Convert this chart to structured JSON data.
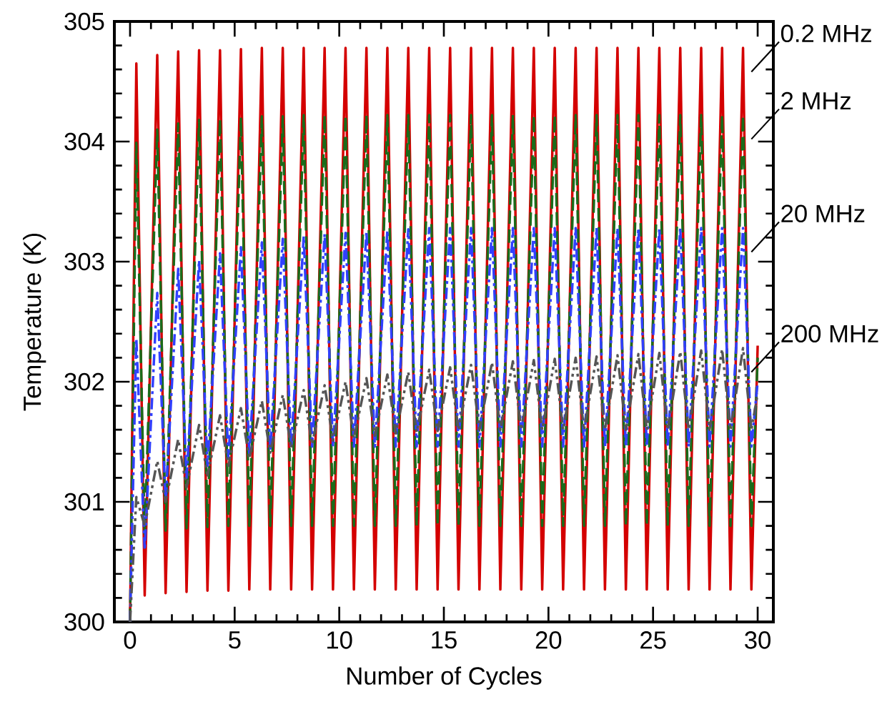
{
  "chart_data": {
    "type": "line",
    "xlabel": "Number of Cycles",
    "ylabel": "Temperature (K)",
    "xlim": [
      -0.75,
      30.75
    ],
    "ylim": [
      300,
      305
    ],
    "xticks": [
      0,
      5,
      10,
      15,
      20,
      25,
      30
    ],
    "yticks": [
      300,
      301,
      302,
      303,
      304,
      305
    ],
    "grid": false,
    "marker": "none",
    "x": [
      0,
      0.3,
      0.7,
      1.3,
      1.7,
      2.3,
      2.7,
      3.3,
      3.7,
      4.3,
      4.7,
      5.3,
      5.7,
      6.3,
      6.7,
      7.3,
      7.7,
      8.3,
      8.7,
      9.3,
      9.7,
      10.3,
      10.7,
      11.3,
      11.7,
      12.3,
      12.7,
      13.3,
      13.7,
      14.3,
      14.7,
      15.3,
      15.7,
      16.3,
      16.7,
      17.3,
      17.7,
      18.3,
      18.7,
      19.3,
      19.7,
      20.3,
      20.7,
      21.3,
      21.7,
      22.3,
      22.7,
      23.3,
      23.7,
      24.3,
      24.7,
      25.3,
      25.7,
      26.3,
      26.7,
      27.3,
      27.7,
      28.3,
      28.7,
      29.3,
      29.7,
      30
    ],
    "series": [
      {
        "name": "0.2 MHz",
        "color": "#d40000",
        "line_style": "solid",
        "values": [
          300,
          304.65,
          300.22,
          304.72,
          300.24,
          304.75,
          300.25,
          304.76,
          300.26,
          304.76,
          300.26,
          304.77,
          300.27,
          304.78,
          300.27,
          304.78,
          300.27,
          304.78,
          300.27,
          304.78,
          300.27,
          304.78,
          300.27,
          304.78,
          300.27,
          304.78,
          300.27,
          304.78,
          300.27,
          304.78,
          300.27,
          304.78,
          300.27,
          304.78,
          300.27,
          304.78,
          300.27,
          304.78,
          300.27,
          304.78,
          300.27,
          304.78,
          300.27,
          304.78,
          300.27,
          304.78,
          300.27,
          304.78,
          300.27,
          304.78,
          300.27,
          304.78,
          300.27,
          304.78,
          300.27,
          304.78,
          300.27,
          304.78,
          300.27,
          304.78,
          300.27,
          302.3
        ]
      },
      {
        "name": "2 MHz",
        "color": "#1a6b1a",
        "line_style": "dashed",
        "values": [
          300,
          303.99,
          300.72,
          304.1,
          300.76,
          304.15,
          300.78,
          304.18,
          300.79,
          304.19,
          300.8,
          304.2,
          300.8,
          304.21,
          300.8,
          304.21,
          300.8,
          304.22,
          300.8,
          304.22,
          300.8,
          304.22,
          300.8,
          304.22,
          300.8,
          304.22,
          300.8,
          304.22,
          300.8,
          304.22,
          300.8,
          304.22,
          300.8,
          304.22,
          300.8,
          304.22,
          300.8,
          304.22,
          300.8,
          304.22,
          300.8,
          304.22,
          300.8,
          304.22,
          300.8,
          304.22,
          300.8,
          304.22,
          300.8,
          304.22,
          300.8,
          304.22,
          300.8,
          304.22,
          300.8,
          304.22,
          300.8,
          304.22,
          300.8,
          304.22,
          300.8,
          302.2
        ]
      },
      {
        "name": "20 MHz",
        "color": "#3040ff",
        "line_style": "dashdotted",
        "values": [
          300,
          302.36,
          300.6,
          302.74,
          301.0,
          302.94,
          301.2,
          303.01,
          301.3,
          303.07,
          301.36,
          303.12,
          301.4,
          303.16,
          301.43,
          303.19,
          301.45,
          303.21,
          301.46,
          303.23,
          301.46,
          303.24,
          301.46,
          303.25,
          301.46,
          303.26,
          301.46,
          303.27,
          301.46,
          303.28,
          301.46,
          303.28,
          301.46,
          303.28,
          301.46,
          303.28,
          301.46,
          303.28,
          301.46,
          303.28,
          301.46,
          303.28,
          301.46,
          303.28,
          301.46,
          303.28,
          301.46,
          303.28,
          301.46,
          303.28,
          301.46,
          303.28,
          301.46,
          303.28,
          301.46,
          303.28,
          301.46,
          303.28,
          301.46,
          303.28,
          301.46,
          302.0
        ]
      },
      {
        "name": "200 MHz",
        "color": "#555555",
        "line_style": "dashdotdotted",
        "values": [
          300,
          301.04,
          300.8,
          301.34,
          301.0,
          301.52,
          301.12,
          301.64,
          301.22,
          301.72,
          301.3,
          301.78,
          301.36,
          301.84,
          301.41,
          301.89,
          301.45,
          301.93,
          301.48,
          301.97,
          301.51,
          302.0,
          301.53,
          302.03,
          301.55,
          302.06,
          301.57,
          302.08,
          301.58,
          302.1,
          301.59,
          302.12,
          301.6,
          302.14,
          301.6,
          302.16,
          301.6,
          302.17,
          301.6,
          302.18,
          301.6,
          302.19,
          301.6,
          302.2,
          301.6,
          302.21,
          301.6,
          302.22,
          301.6,
          302.23,
          301.6,
          302.24,
          301.6,
          302.25,
          301.6,
          302.26,
          301.6,
          302.27,
          301.6,
          302.28,
          301.6,
          301.9
        ]
      }
    ]
  }
}
